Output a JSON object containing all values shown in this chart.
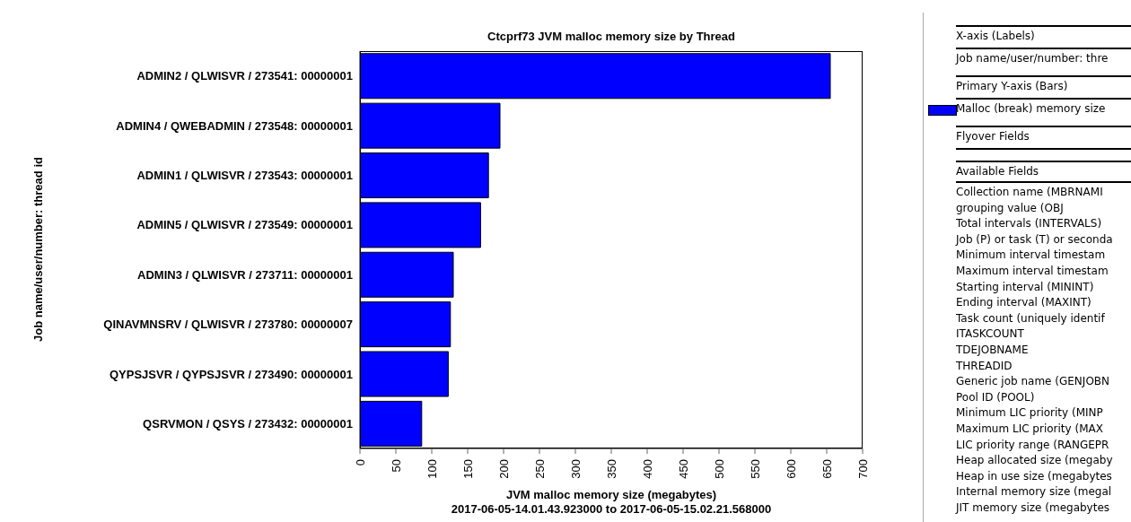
{
  "chart_data": [
    {
      "type": "bar",
      "orientation": "horizontal",
      "title": "Ctcprf73 JVM malloc memory size by Thread",
      "xlabel": "JVM malloc memory size (megabytes)",
      "subtitle": "2017-06-05-14.01.43.923000 to 2017-06-05-15.02.21.568000",
      "ylabel": "Job name/user/number: thread id",
      "categories": [
        "ADMIN2 / QLWISVR / 273541: 00000001",
        "ADMIN4 / QWEBADMIN / 273548: 00000001",
        "ADMIN1 / QLWISVR / 273543: 00000001",
        "ADMIN5 / QLWISVR / 273549: 00000001",
        "ADMIN3 / QLWISVR / 273711: 00000001",
        "QINAVMNSRV / QLWISVR / 273780: 00000007",
        "QYPSJSVR / QYPSJSVR / 273490: 00000001",
        "QSRVMON / QSYS / 273432: 00000001"
      ],
      "values": [
        655,
        195,
        179,
        168,
        130,
        126,
        123,
        86
      ],
      "color": "#0000ff",
      "xlim": [
        0,
        700
      ],
      "xticks": [
        0,
        50,
        100,
        150,
        200,
        250,
        300,
        350,
        400,
        450,
        500,
        550,
        600,
        650,
        700
      ]
    },
    {
      "type": "other",
      "annotations": [
        "X-axis (Labels)",
        "Job name/user/number: thre",
        "Primary Y-axis (Bars)",
        "Malloc (break) memory size",
        "Flyover Fields",
        "Available Fields",
        "Collection name (MBRNAMI",
        "grouping value (OBJ",
        "Total intervals (INTERVALS)",
        "Job (P) or task (T) or seconda",
        "Minimum interval timestam",
        "Maximum interval timestam",
        "Starting interval (MININT)",
        "Ending interval (MAXINT)",
        "Task count (uniquely identif",
        "ITASKCOUNT",
        "TDEJOBNAME",
        "THREADID",
        "Generic job name (GENJOBN",
        "Pool ID (POOL)",
        "Minimum LIC priority (MINP",
        "Maximum LIC priority (MAX",
        "LIC priority range (RANGEPR",
        "Heap allocated size (megaby",
        "Heap in use size (megabytes",
        "Internal memory size (megal",
        "JIT memory size (megabytes"
      ]
    }
  ]
}
